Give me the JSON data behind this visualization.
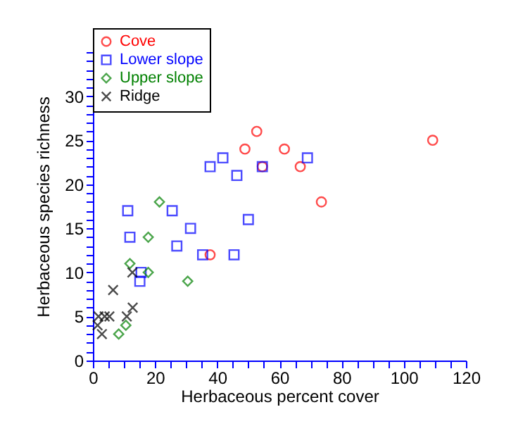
{
  "chart_data": {
    "type": "scatter",
    "xlabel": "Herbaceous percent cover",
    "ylabel": "Herbaceous species richness",
    "legend": "top left",
    "grid": false,
    "xlim": [
      0,
      120
    ],
    "ylim": [
      0,
      35
    ],
    "xticks": [
      0,
      {
        "value": 5,
        "label": null
      },
      {
        "value": 10,
        "label": null
      },
      {
        "value": 15,
        "label": null
      },
      20,
      {
        "value": 25,
        "label": null
      },
      {
        "value": 30,
        "label": null
      },
      {
        "value": 35,
        "label": null
      },
      40,
      {
        "value": 45,
        "label": null
      },
      {
        "value": 50,
        "label": null
      },
      {
        "value": 55,
        "label": null
      },
      60,
      {
        "value": 65,
        "label": null
      },
      {
        "value": 70,
        "label": null
      },
      {
        "value": 75,
        "label": null
      },
      80,
      {
        "value": 85,
        "label": null
      },
      {
        "value": 90,
        "label": null
      },
      {
        "value": 95,
        "label": null
      },
      100,
      {
        "value": 105,
        "label": null
      },
      {
        "value": 110,
        "label": null
      },
      {
        "value": 115,
        "label": null
      },
      120
    ],
    "yticks": [
      0,
      {
        "value": 1,
        "label": null
      },
      {
        "value": 2,
        "label": null
      },
      {
        "value": 3,
        "label": null
      },
      {
        "value": 4,
        "label": null
      },
      5,
      {
        "value": 6,
        "label": null
      },
      {
        "value": 7,
        "label": null
      },
      {
        "value": 8,
        "label": null
      },
      {
        "value": 9,
        "label": null
      },
      10,
      {
        "value": 11,
        "label": null
      },
      {
        "value": 12,
        "label": null
      },
      {
        "value": 13,
        "label": null
      },
      {
        "value": 14,
        "label": null
      },
      15,
      {
        "value": 16,
        "label": null
      },
      {
        "value": 17,
        "label": null
      },
      {
        "value": 18,
        "label": null
      },
      {
        "value": 19,
        "label": null
      },
      20,
      {
        "value": 21,
        "label": null
      },
      {
        "value": 22,
        "label": null
      },
      {
        "value": 23,
        "label": null
      },
      {
        "value": 24,
        "label": null
      },
      25,
      {
        "value": 26,
        "label": null
      },
      {
        "value": 27,
        "label": null
      },
      {
        "value": 28,
        "label": null
      },
      {
        "value": 29,
        "label": null
      },
      30,
      {
        "value": 31,
        "label": null
      },
      {
        "value": 32,
        "label": null
      },
      {
        "value": 33,
        "label": null
      },
      {
        "value": 34,
        "label": null
      },
      {
        "value": 35,
        "label": null
      }
    ],
    "series": [
      {
        "name": "Cove",
        "color": "#ff0000",
        "marker": "circle",
        "x": [
          52.7,
          48.9,
          61.6,
          54.5,
          66.7,
          73.5,
          109.3,
          37.7
        ],
        "values": [
          26,
          24,
          24,
          22,
          22,
          18,
          25,
          12
        ]
      },
      {
        "name": "Lower slope",
        "color": "#0000ff",
        "marker": "square",
        "x": [
          37.7,
          41.8,
          46.3,
          54.5,
          69,
          50,
          35.3,
          45.4,
          11.2,
          25.5,
          11.9,
          31.4,
          27,
          15.5,
          15.1
        ],
        "values": [
          22,
          23,
          21,
          22,
          23,
          16,
          12,
          12,
          17,
          17,
          14,
          15,
          13,
          10,
          9
        ]
      },
      {
        "name": "Upper slope",
        "color": "#008000",
        "marker": "diamond",
        "x": [
          21.4,
          17.8,
          11.9,
          17.8,
          30.5,
          10.6,
          8.3
        ],
        "values": [
          18,
          14,
          11,
          10,
          9,
          4,
          3
        ]
      },
      {
        "name": "Ridge",
        "color": "#000000",
        "marker": "cross",
        "x": [
          12.7,
          6.5,
          12.8,
          10.9,
          5.3,
          3.8,
          1.8,
          1.5,
          2.9
        ],
        "values": [
          10,
          8,
          6,
          5,
          5,
          5,
          5,
          4,
          3
        ]
      }
    ]
  }
}
